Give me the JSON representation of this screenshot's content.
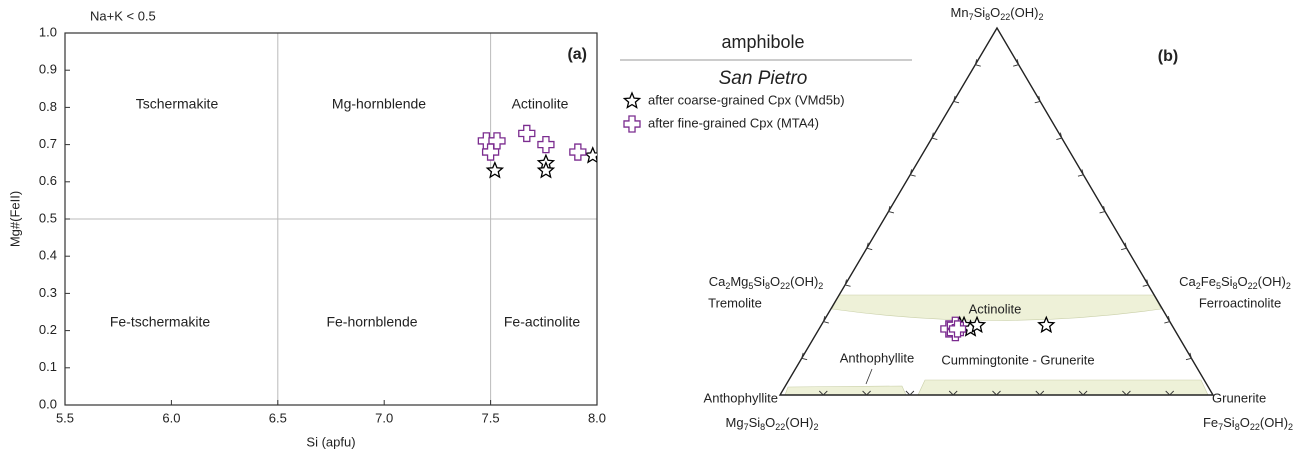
{
  "chart_data": [
    {
      "type": "scatter",
      "annotation": "Na+K < 0.5",
      "panel_label": "(a)",
      "x_label": "Si (apfu)",
      "y_label": "Mg#(FeII)",
      "xlim": [
        5.5,
        8.0
      ],
      "ylim": [
        0,
        1.0
      ],
      "xticks": [
        5.5,
        {
          "value": 6.0,
          "label": "6.0"
        },
        6.5,
        {
          "value": 7.0,
          "label": "7.0"
        },
        7.5,
        {
          "value": 8.0,
          "label": "8.0"
        }
      ],
      "yticks": [
        {
          "value": 0,
          "label": "0.0"
        },
        0.1,
        0.2,
        0.3,
        0.4,
        0.5,
        0.6,
        0.7,
        0.8,
        0.9,
        {
          "value": 1.0,
          "label": "1.0"
        }
      ],
      "field_boundaries": {
        "x": [
          6.5,
          7.5
        ],
        "y": [
          0.5
        ]
      },
      "fields": [
        "Tschermakite",
        "Mg-hornblende",
        "Actinolite",
        "Fe-tschermakite",
        "Fe-hornblende",
        "Fe-actinolite"
      ],
      "series": [
        {
          "marker": "star",
          "color": "#000000",
          "x": [
            7.52,
            7.76,
            7.76,
            7.98
          ],
          "y": [
            0.63,
            0.65,
            0.63,
            0.67
          ]
        },
        {
          "marker": "cross",
          "color": "#7b2c8f",
          "x": [
            7.48,
            7.53,
            7.5,
            7.67,
            7.76,
            7.91
          ],
          "y": [
            0.71,
            0.71,
            0.68,
            0.73,
            0.7,
            0.68
          ]
        }
      ]
    },
    {
      "type": "ternary",
      "title": "amphibole",
      "subtitle": "San Pietro",
      "panel_label": "(b)",
      "vertices": {
        "top": "Mn7Si8O22(OH)2",
        "left": "Mg7Si8O22(OH)2",
        "right": "Fe7Si8O22(OH)2"
      },
      "labels": [
        "Ca2Mg5Si8O22(OH)2",
        "Tremolite",
        "Ca2Fe5Si8O22(OH)2",
        "Ferroactinolite",
        "Actinolite",
        "Anthophyllite",
        "Cummingtonite - Grunerite",
        "Anthophyllite",
        "Grunerite"
      ],
      "series": [
        {
          "name": "after coarse-grained Cpx (VMd5b)",
          "marker": "star",
          "color": "#000000",
          "fe": [
            0.32,
            0.33,
            0.35,
            0.36,
            0.52
          ],
          "mn": [
            0.19,
            0.19,
            0.18,
            0.19,
            0.19
          ]
        },
        {
          "name": "after fine-grained Cpx (MTA4)",
          "marker": "cross",
          "color": "#7b2c8f",
          "fe": [
            0.3,
            0.31,
            0.32,
            0.32
          ],
          "mn": [
            0.18,
            0.19,
            0.17,
            0.18
          ]
        }
      ]
    }
  ]
}
